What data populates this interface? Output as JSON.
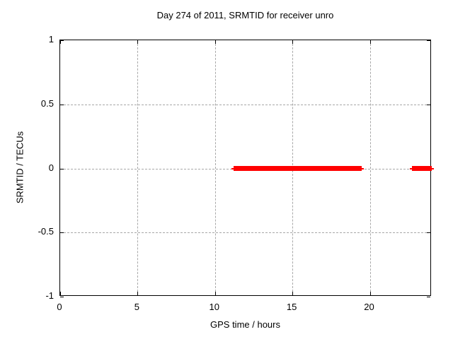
{
  "chart_data": {
    "type": "line",
    "title": "Day 274 of 2011, SRMTID for receiver unro",
    "xlabel": "GPS time / hours",
    "ylabel": "SRMTID / TECUs",
    "xlim": [
      0,
      24
    ],
    "ylim": [
      -1,
      1
    ],
    "xticks": [
      0,
      5,
      10,
      15,
      20
    ],
    "xtick_labels": [
      "0",
      "5",
      "10",
      "15",
      "20"
    ],
    "yticks": [
      1,
      0.5,
      0,
      -0.5,
      -1
    ],
    "ytick_labels": [
      "1",
      "0.5",
      "0",
      "-0.5",
      "-1"
    ],
    "grid": true,
    "legend": "none",
    "series": [
      {
        "name": "SRMTID",
        "style": "thick horizontal segments at constant value",
        "color": "#ff0000",
        "segments": [
          {
            "x_start": 11.2,
            "x_end": 19.48,
            "y": 0
          },
          {
            "x_start": 22.72,
            "x_end": 24.0,
            "y": 0
          }
        ]
      }
    ]
  },
  "colors": {
    "background": "#ffffff",
    "axis": "#000000",
    "grid": "#a8a8a8",
    "text": "#000000",
    "series": "#ff0000"
  }
}
